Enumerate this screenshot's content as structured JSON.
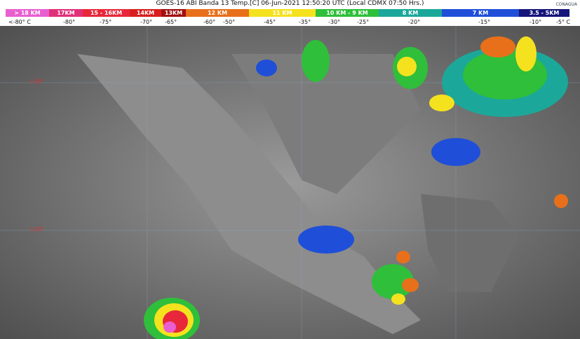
{
  "header": {
    "title": "GOES-16 ABI Banda 13 Temp.[C] 06-Jun-2021 12:50:20 UTC (Local CDMX  07:50 Hrs.)",
    "scale": [
      {
        "label": "> 18 KM",
        "color": "#e85fd0"
      },
      {
        "label": "17KM",
        "color": "#e0307a"
      },
      {
        "label": "15 - 16KM",
        "color": "#e8283a"
      },
      {
        "label": "14KM",
        "color": "#d81e1e"
      },
      {
        "label": "13KM",
        "color": "#a01010"
      },
      {
        "label": "12 KM",
        "color": "#e8701a"
      },
      {
        "label": "11 KM",
        "color": "#f5e21e"
      },
      {
        "label": "10 KM - 9 KM",
        "color": "#2fbf3a"
      },
      {
        "label": "8 KM",
        "color": "#1ba89a"
      },
      {
        "label": "7 KM",
        "color": "#1f4fd8"
      },
      {
        "label": "3.5 - 5KM",
        "color": "#14147a"
      }
    ],
    "temperatures": [
      "<-80° C",
      "-80°",
      "-75°",
      "-70°",
      "-65°",
      "-60°",
      "-50°",
      "-45°",
      "-35°",
      "-30°",
      "-25°",
      "-20°",
      "-15°",
      "-10°",
      "-5° C"
    ]
  },
  "map": {
    "latitudes": [
      "+30°",
      "+20°"
    ],
    "logo": "CONAGUA"
  }
}
